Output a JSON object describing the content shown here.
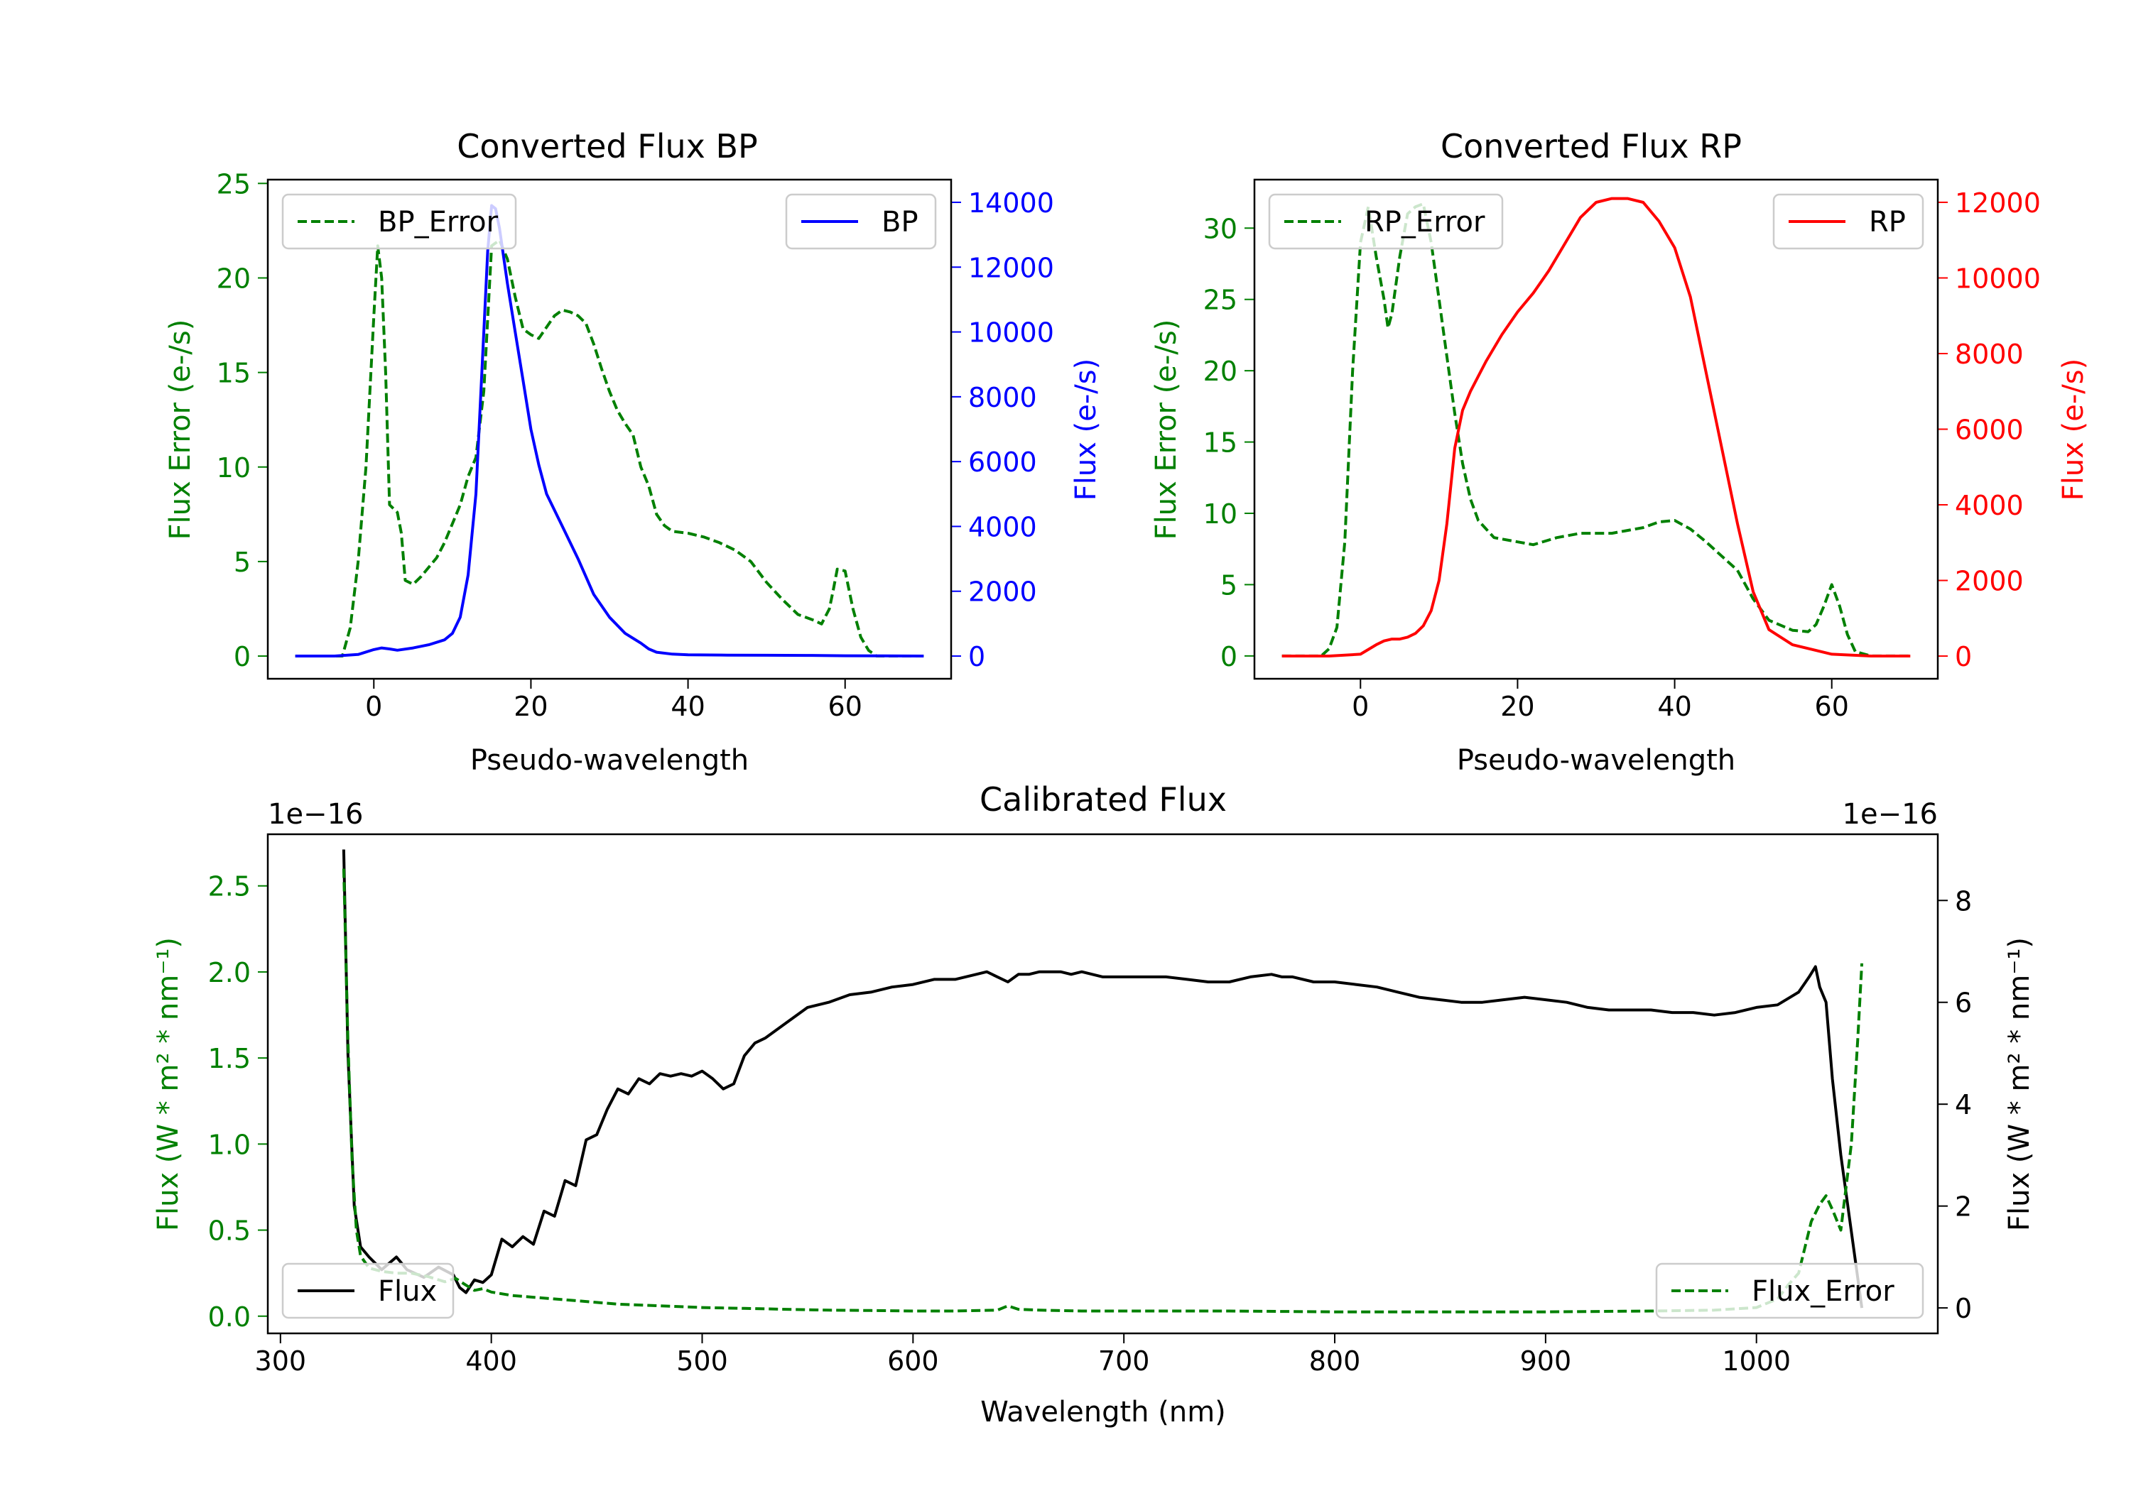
{
  "chart_data": [
    {
      "type": "line",
      "title": "Converted Flux BP",
      "xlabel": "Pseudo-wavelength",
      "xlim": [
        -13.5,
        73.5
      ],
      "x_ticks": [
        0,
        20,
        40,
        60
      ],
      "left_axis": {
        "label": "Flux Error (e-/s)",
        "ylim": [
          -1.2,
          25.2
        ],
        "ticks": [
          0,
          5,
          10,
          15,
          20,
          25
        ],
        "color": "#008000"
      },
      "right_axis": {
        "label": "Flux (e-/s)",
        "ylim": [
          -700,
          14700
        ],
        "ticks": [
          0,
          2000,
          4000,
          6000,
          8000,
          10000,
          12000,
          14000
        ],
        "color": "#0000ff"
      },
      "series": [
        {
          "name": "BP_Error",
          "axis": "left",
          "style": "dashed",
          "color": "#008000",
          "x": [
            -10,
            -4,
            -3,
            -2,
            -1,
            0,
            0.5,
            1,
            1.5,
            2,
            3,
            3.5,
            4,
            5,
            6,
            7,
            8,
            9,
            10,
            11,
            12,
            13,
            14,
            15,
            16,
            17,
            18,
            19,
            20,
            21,
            22,
            23,
            24,
            25,
            26,
            27,
            28,
            29,
            30,
            31,
            32,
            33,
            34,
            35,
            36,
            37,
            38,
            40,
            42,
            44,
            46,
            48,
            50,
            52,
            54,
            56,
            57,
            58,
            58.5,
            59,
            60,
            61,
            62,
            63,
            64,
            65,
            70
          ],
          "y": [
            0,
            0,
            1.5,
            5,
            10,
            18,
            21.7,
            20,
            15,
            8,
            7.6,
            6.5,
            4,
            3.8,
            4.2,
            4.7,
            5.2,
            6,
            7,
            8,
            9.5,
            10.5,
            14,
            21.7,
            22,
            21,
            19,
            17.3,
            17,
            16.8,
            17.4,
            18,
            18.3,
            18.2,
            18,
            17.6,
            16.5,
            15.2,
            14,
            13,
            12.3,
            11.7,
            10,
            9,
            7.5,
            6.9,
            6.6,
            6.5,
            6.3,
            6,
            5.6,
            5,
            3.9,
            3,
            2.2,
            1.9,
            1.7,
            2.5,
            3.5,
            4.6,
            4.5,
            2.5,
            1,
            0.3,
            0,
            0,
            0
          ]
        },
        {
          "name": "BP",
          "axis": "right",
          "style": "solid",
          "color": "#0000ff",
          "x": [
            -10,
            -5,
            -2,
            0,
            1,
            2,
            3,
            5,
            7,
            9,
            10,
            11,
            12,
            13,
            14,
            14.5,
            15,
            15.5,
            16,
            17,
            18,
            19,
            20,
            21,
            22,
            24,
            26,
            28,
            30,
            32,
            34,
            35,
            36,
            38,
            40,
            45,
            50,
            55,
            60,
            65,
            70
          ],
          "y": [
            0,
            0,
            50,
            200,
            250,
            220,
            180,
            250,
            350,
            500,
            700,
            1200,
            2500,
            5000,
            10000,
            12500,
            13900,
            13800,
            13200,
            11500,
            10000,
            8500,
            7000,
            5900,
            5000,
            4000,
            3000,
            1900,
            1200,
            700,
            400,
            220,
            120,
            60,
            40,
            30,
            25,
            20,
            10,
            5,
            0
          ]
        }
      ],
      "legend": [
        {
          "label": "BP_Error",
          "placement": "upper-left"
        },
        {
          "label": "BP",
          "placement": "upper-right"
        }
      ]
    },
    {
      "type": "line",
      "title": "Converted Flux RP",
      "xlabel": "Pseudo-wavelength",
      "xlim": [
        -13.5,
        73.5
      ],
      "x_ticks": [
        0,
        20,
        40,
        60
      ],
      "left_axis": {
        "label": "Flux Error (e-/s)",
        "ylim": [
          -1.6,
          33.4
        ],
        "ticks": [
          0,
          5,
          10,
          15,
          20,
          25,
          30
        ],
        "color": "#008000"
      },
      "right_axis": {
        "label": "Flux (e-/s)",
        "ylim": [
          -600,
          12600
        ],
        "ticks": [
          0,
          2000,
          4000,
          6000,
          8000,
          10000,
          12000
        ],
        "color": "#ff0000"
      },
      "series": [
        {
          "name": "RP_Error",
          "axis": "left",
          "style": "dashed",
          "color": "#008000",
          "x": [
            -10,
            -5,
            -4,
            -3,
            -2,
            -1,
            0,
            1,
            2,
            3,
            3.5,
            4,
            5,
            6,
            7,
            8,
            9,
            10,
            11,
            12,
            13,
            14,
            15,
            17,
            20,
            22,
            25,
            28,
            32,
            36,
            38,
            40,
            42,
            44,
            46,
            48,
            50,
            52,
            55,
            57,
            58,
            59,
            60,
            61,
            62,
            63,
            65,
            70
          ],
          "y": [
            0,
            0,
            0.5,
            2,
            8,
            20,
            29,
            31.5,
            28,
            25,
            23,
            24,
            28,
            31,
            31.5,
            31.7,
            29,
            25,
            21,
            17,
            13.5,
            11,
            9.5,
            8.3,
            8,
            7.8,
            8.3,
            8.6,
            8.6,
            9,
            9.4,
            9.5,
            8.9,
            8,
            7,
            6,
            4,
            2.5,
            1.8,
            1.7,
            2.2,
            3.5,
            5,
            3.5,
            1.5,
            0.3,
            0,
            0
          ]
        },
        {
          "name": "RP",
          "axis": "right",
          "style": "solid",
          "color": "#ff0000",
          "x": [
            -10,
            -4,
            0,
            2,
            3,
            4,
            5,
            6,
            7,
            8,
            9,
            10,
            11,
            12,
            13,
            14,
            15,
            16,
            18,
            20,
            22,
            24,
            26,
            28,
            30,
            32,
            34,
            36,
            38,
            40,
            42,
            44,
            46,
            48,
            50,
            52,
            55,
            58,
            60,
            65,
            70
          ],
          "y": [
            0,
            0,
            50,
            300,
            400,
            450,
            450,
            500,
            600,
            800,
            1200,
            2000,
            3500,
            5500,
            6500,
            7000,
            7400,
            7800,
            8500,
            9100,
            9600,
            10200,
            10900,
            11600,
            12000,
            12100,
            12100,
            12000,
            11500,
            10800,
            9500,
            7500,
            5500,
            3500,
            1700,
            700,
            300,
            150,
            50,
            0,
            0
          ]
        }
      ],
      "legend": [
        {
          "label": "RP_Error",
          "placement": "upper-left"
        },
        {
          "label": "RP",
          "placement": "upper-right"
        }
      ]
    },
    {
      "type": "line",
      "title": "Calibrated Flux",
      "xlabel": "Wavelength (nm)",
      "xlim": [
        294,
        1086
      ],
      "x_ticks": [
        300,
        400,
        500,
        600,
        700,
        800,
        900,
        1000
      ],
      "left_axis": {
        "label": "Flux (W * m² * nm⁻¹)",
        "scale_label": "1e−16",
        "ylim": [
          -0.1,
          2.8
        ],
        "ticks": [
          0.0,
          0.5,
          1.0,
          1.5,
          2.0,
          2.5
        ],
        "tick_labels": [
          "0.0",
          "0.5",
          "1.0",
          "1.5",
          "2.0",
          "2.5"
        ],
        "color": "#008000"
      },
      "right_axis": {
        "label": "Flux (W * m² * nm⁻¹)",
        "scale_label": "1e−16",
        "ylim": [
          -0.5,
          9.3
        ],
        "ticks": [
          0,
          2,
          4,
          6,
          8
        ],
        "color": "#000000"
      },
      "series": [
        {
          "name": "Flux",
          "axis": "right",
          "style": "solid",
          "color": "#000000",
          "x": [
            330,
            332,
            335,
            338,
            342,
            348,
            355,
            360,
            368,
            375,
            382,
            385,
            388,
            392,
            396,
            400,
            405,
            410,
            415,
            420,
            425,
            430,
            435,
            440,
            445,
            450,
            455,
            460,
            465,
            470,
            475,
            480,
            485,
            490,
            495,
            500,
            505,
            510,
            515,
            520,
            525,
            530,
            540,
            550,
            560,
            570,
            580,
            590,
            600,
            610,
            620,
            630,
            635,
            640,
            645,
            650,
            655,
            660,
            665,
            670,
            675,
            680,
            685,
            690,
            700,
            710,
            720,
            730,
            740,
            750,
            760,
            770,
            775,
            780,
            790,
            800,
            810,
            820,
            830,
            840,
            850,
            860,
            870,
            880,
            890,
            900,
            910,
            920,
            930,
            940,
            950,
            960,
            970,
            980,
            990,
            1000,
            1010,
            1020,
            1025,
            1028,
            1030,
            1033,
            1036,
            1040,
            1045,
            1050
          ],
          "y": [
            9.0,
            5.0,
            2.0,
            1.2,
            1.0,
            0.75,
            1.0,
            0.75,
            0.6,
            0.8,
            0.65,
            0.4,
            0.3,
            0.55,
            0.5,
            0.65,
            1.35,
            1.2,
            1.4,
            1.25,
            1.9,
            1.8,
            2.5,
            2.4,
            3.3,
            3.4,
            3.9,
            4.3,
            4.2,
            4.5,
            4.4,
            4.6,
            4.55,
            4.6,
            4.55,
            4.65,
            4.5,
            4.3,
            4.4,
            4.95,
            5.2,
            5.3,
            5.6,
            5.9,
            6.0,
            6.15,
            6.2,
            6.3,
            6.35,
            6.45,
            6.45,
            6.55,
            6.6,
            6.5,
            6.4,
            6.55,
            6.55,
            6.6,
            6.6,
            6.6,
            6.55,
            6.6,
            6.55,
            6.5,
            6.5,
            6.5,
            6.5,
            6.45,
            6.4,
            6.4,
            6.5,
            6.55,
            6.5,
            6.5,
            6.4,
            6.4,
            6.35,
            6.3,
            6.2,
            6.1,
            6.05,
            6.0,
            6.0,
            6.05,
            6.1,
            6.05,
            6.0,
            5.9,
            5.85,
            5.85,
            5.85,
            5.8,
            5.8,
            5.75,
            5.8,
            5.9,
            5.95,
            6.2,
            6.5,
            6.7,
            6.3,
            6.0,
            4.5,
            3.0,
            1.5,
            0.0
          ]
        },
        {
          "name": "Flux_Error",
          "axis": "left",
          "style": "dashed",
          "color": "#008000",
          "x": [
            330,
            332,
            334,
            336,
            338,
            342,
            348,
            355,
            362,
            370,
            378,
            383,
            388,
            392,
            396,
            400,
            410,
            420,
            430,
            440,
            450,
            460,
            480,
            500,
            520,
            540,
            560,
            580,
            600,
            620,
            640,
            645,
            650,
            660,
            680,
            700,
            750,
            800,
            850,
            900,
            950,
            980,
            1000,
            1010,
            1015,
            1020,
            1023,
            1026,
            1030,
            1033,
            1036,
            1040,
            1042,
            1045,
            1048,
            1050
          ],
          "y": [
            2.6,
            1.6,
            0.9,
            0.5,
            0.35,
            0.28,
            0.26,
            0.25,
            0.25,
            0.23,
            0.2,
            0.22,
            0.18,
            0.15,
            0.16,
            0.14,
            0.12,
            0.11,
            0.1,
            0.09,
            0.08,
            0.07,
            0.06,
            0.05,
            0.045,
            0.04,
            0.035,
            0.033,
            0.03,
            0.03,
            0.035,
            0.06,
            0.04,
            0.035,
            0.03,
            0.03,
            0.03,
            0.025,
            0.025,
            0.025,
            0.03,
            0.035,
            0.05,
            0.1,
            0.18,
            0.25,
            0.4,
            0.55,
            0.65,
            0.7,
            0.62,
            0.5,
            0.7,
            1.0,
            1.6,
            2.05
          ]
        }
      ],
      "legend": [
        {
          "label": "Flux",
          "placement": "lower-left"
        },
        {
          "label": "Flux_Error",
          "placement": "lower-right"
        }
      ]
    }
  ]
}
